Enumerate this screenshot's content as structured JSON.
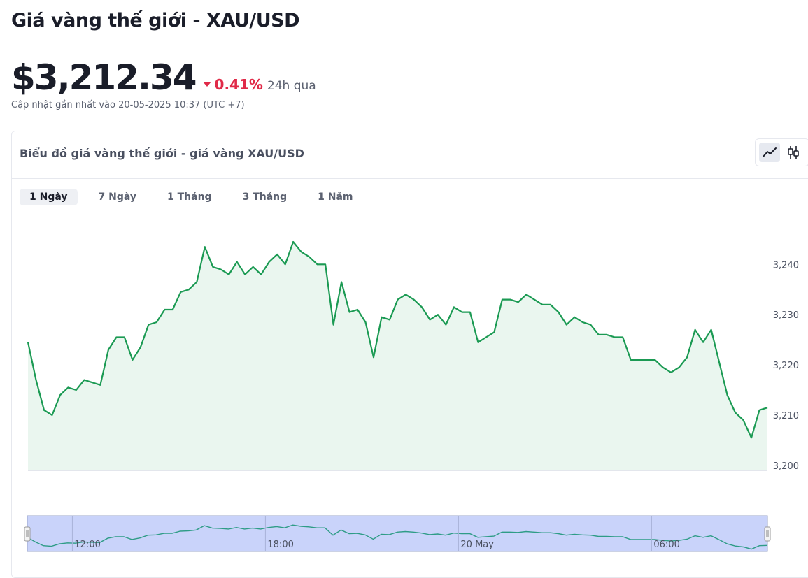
{
  "page_title": "Giá vàng thế giới - XAU/USD",
  "price": "$3,212.34",
  "change_pct": "0.41%",
  "change_period": "24h qua",
  "updated": "Cập nhật gần nhất vào 20-05-2025 10:37 (UTC +7)",
  "colors": {
    "line": "#1b9a53",
    "fill": "#eaf6ef",
    "negative": "#e02a48",
    "navigator": "#c9d3fa"
  },
  "chart_card": {
    "title": "Biểu đồ giá vàng thế giới - giá vàng XAU/USD",
    "type_buttons": [
      {
        "name": "line-chart-icon",
        "active": true
      },
      {
        "name": "candlestick-icon",
        "active": false
      }
    ],
    "tabs": [
      {
        "label": "1 Ngày",
        "active": true
      },
      {
        "label": "7 Ngày",
        "active": false
      },
      {
        "label": "1 Tháng",
        "active": false
      },
      {
        "label": "3 Tháng",
        "active": false
      },
      {
        "label": "1 Năm",
        "active": false
      }
    ]
  },
  "chart_data": {
    "type": "area",
    "title": "",
    "xlabel": "",
    "ylabel": "",
    "ylim": [
      3199,
      3247
    ],
    "y_ticks": [
      3200,
      3210,
      3220,
      3230,
      3240
    ],
    "y_tick_labels": [
      "3,200",
      "3,210",
      "3,220",
      "3,230",
      "3,240"
    ],
    "grid": false,
    "legend": "none",
    "navigator_labels": [
      "12:00",
      "18:00",
      "20 May",
      "06:00"
    ],
    "navigator_label_hours": [
      12,
      18,
      24,
      30
    ],
    "x_unit": "hours since 00:00 on 19 May",
    "x_range": [
      10.6,
      33.6
    ],
    "series": [
      {
        "values": [
          [
            10.6,
            3224.5
          ],
          [
            10.85,
            3217
          ],
          [
            11.1,
            3211
          ],
          [
            11.35,
            3210
          ],
          [
            11.6,
            3214
          ],
          [
            11.85,
            3215.5
          ],
          [
            12.1,
            3215
          ],
          [
            12.35,
            3217
          ],
          [
            12.6,
            3216.5
          ],
          [
            12.85,
            3216
          ],
          [
            13.1,
            3223
          ],
          [
            13.35,
            3225.5
          ],
          [
            13.6,
            3225.5
          ],
          [
            13.85,
            3221
          ],
          [
            14.1,
            3223.5
          ],
          [
            14.35,
            3228
          ],
          [
            14.6,
            3228.5
          ],
          [
            14.85,
            3231
          ],
          [
            15.1,
            3231
          ],
          [
            15.35,
            3234.5
          ],
          [
            15.6,
            3235
          ],
          [
            15.85,
            3236.5
          ],
          [
            16.1,
            3243.5
          ],
          [
            16.35,
            3239.5
          ],
          [
            16.6,
            3239
          ],
          [
            16.85,
            3238
          ],
          [
            17.1,
            3240.5
          ],
          [
            17.35,
            3238
          ],
          [
            17.6,
            3239.5
          ],
          [
            17.85,
            3238
          ],
          [
            18.1,
            3240.5
          ],
          [
            18.35,
            3242
          ],
          [
            18.6,
            3240
          ],
          [
            18.85,
            3244.5
          ],
          [
            19.1,
            3242.5
          ],
          [
            19.35,
            3241.5
          ],
          [
            19.6,
            3240
          ],
          [
            19.85,
            3240
          ],
          [
            20.1,
            3228
          ],
          [
            20.35,
            3236.5
          ],
          [
            20.6,
            3230.5
          ],
          [
            20.85,
            3231
          ],
          [
            21.1,
            3228.5
          ],
          [
            21.35,
            3221.5
          ],
          [
            21.6,
            3229.5
          ],
          [
            21.85,
            3229
          ],
          [
            22.1,
            3233
          ],
          [
            22.35,
            3234
          ],
          [
            22.6,
            3233
          ],
          [
            22.85,
            3231.5
          ],
          [
            23.1,
            3229
          ],
          [
            23.35,
            3230
          ],
          [
            23.6,
            3228
          ],
          [
            23.85,
            3231.5
          ],
          [
            24.1,
            3230.5
          ],
          [
            24.35,
            3230.5
          ],
          [
            24.6,
            3224.5
          ],
          [
            24.85,
            3225.5
          ],
          [
            25.1,
            3226.5
          ],
          [
            25.35,
            3233
          ],
          [
            25.6,
            3233
          ],
          [
            25.85,
            3232.5
          ],
          [
            26.1,
            3234
          ],
          [
            26.35,
            3233
          ],
          [
            26.6,
            3232
          ],
          [
            26.85,
            3232
          ],
          [
            27.1,
            3230.5
          ],
          [
            27.35,
            3228
          ],
          [
            27.6,
            3229.5
          ],
          [
            27.85,
            3228.5
          ],
          [
            28.1,
            3228
          ],
          [
            28.35,
            3226
          ],
          [
            28.6,
            3226
          ],
          [
            28.85,
            3225.5
          ],
          [
            29.1,
            3225.5
          ],
          [
            29.35,
            3221
          ],
          [
            29.6,
            3221
          ],
          [
            29.85,
            3221
          ],
          [
            30.1,
            3221
          ],
          [
            30.35,
            3219.5
          ],
          [
            30.6,
            3218.5
          ],
          [
            30.85,
            3219.5
          ],
          [
            31.1,
            3221.5
          ],
          [
            31.35,
            3227
          ],
          [
            31.6,
            3224.5
          ],
          [
            31.85,
            3227
          ],
          [
            32.1,
            3220.5
          ],
          [
            32.35,
            3214
          ],
          [
            32.6,
            3210.5
          ],
          [
            32.85,
            3209
          ],
          [
            33.1,
            3205.5
          ],
          [
            33.35,
            3211
          ],
          [
            33.6,
            3211.5
          ]
        ]
      }
    ]
  }
}
